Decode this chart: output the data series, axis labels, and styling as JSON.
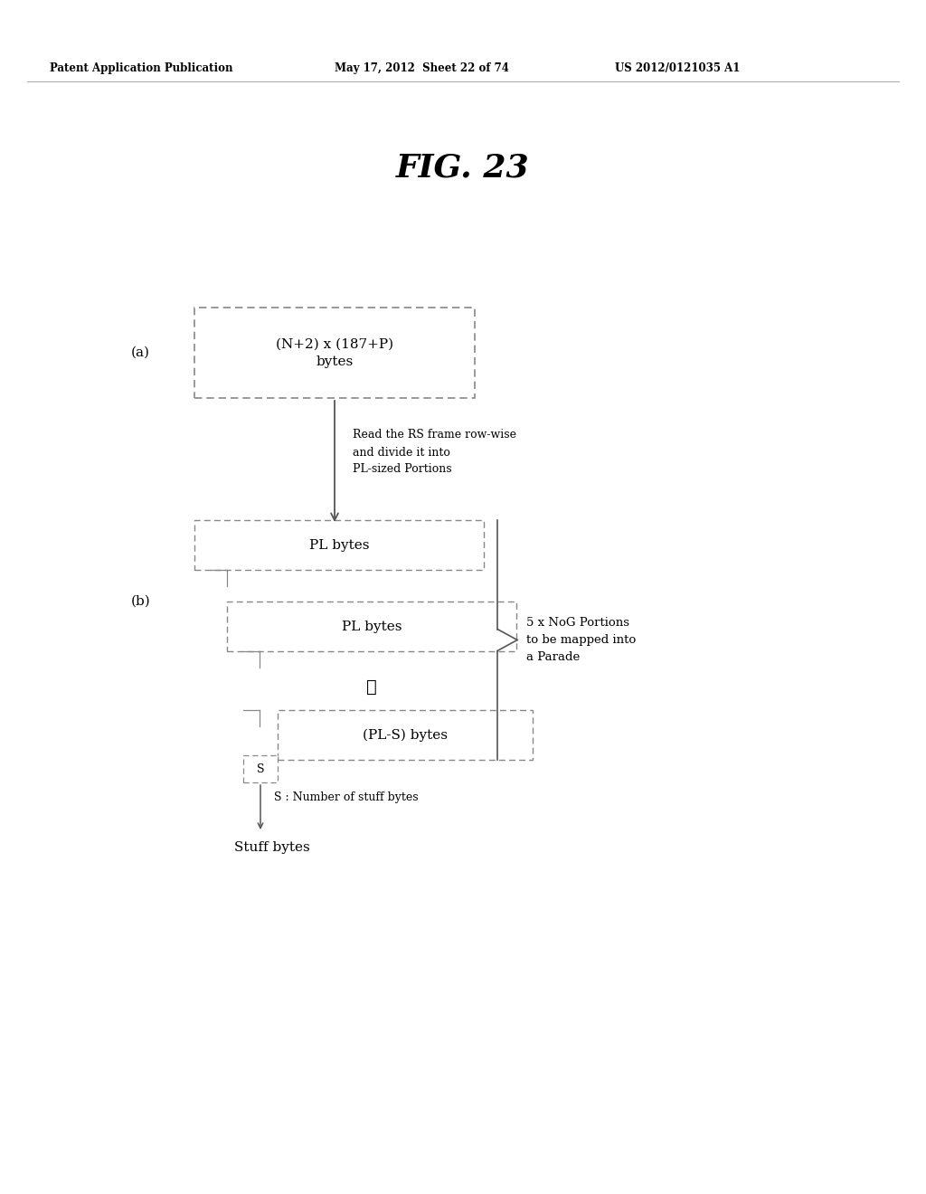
{
  "title": "FIG. 23",
  "header_left": "Patent Application Publication",
  "header_mid": "May 17, 2012  Sheet 22 of 74",
  "header_right": "US 2012/0121035 A1",
  "label_a": "(a)",
  "label_b": "(b)",
  "box_a_text": "(N+2) x (187+P)\nbytes",
  "arrow_label": "Read the RS frame row-wise\nand divide it into\nPL-sized Portions",
  "box_b1_text": "PL bytes",
  "box_b2_text": "PL bytes",
  "box_b3_text": "(PL-S) bytes",
  "box_s_text": "S",
  "brace_label": "5 x NoG Portions\nto be mapped into\na Parade",
  "s_label": "S : Number of stuff bytes",
  "stuff_label": "Stuff bytes",
  "bg_color": "#ffffff",
  "text_color": "#000000",
  "dash_color": "#888888",
  "line_color": "#555555"
}
